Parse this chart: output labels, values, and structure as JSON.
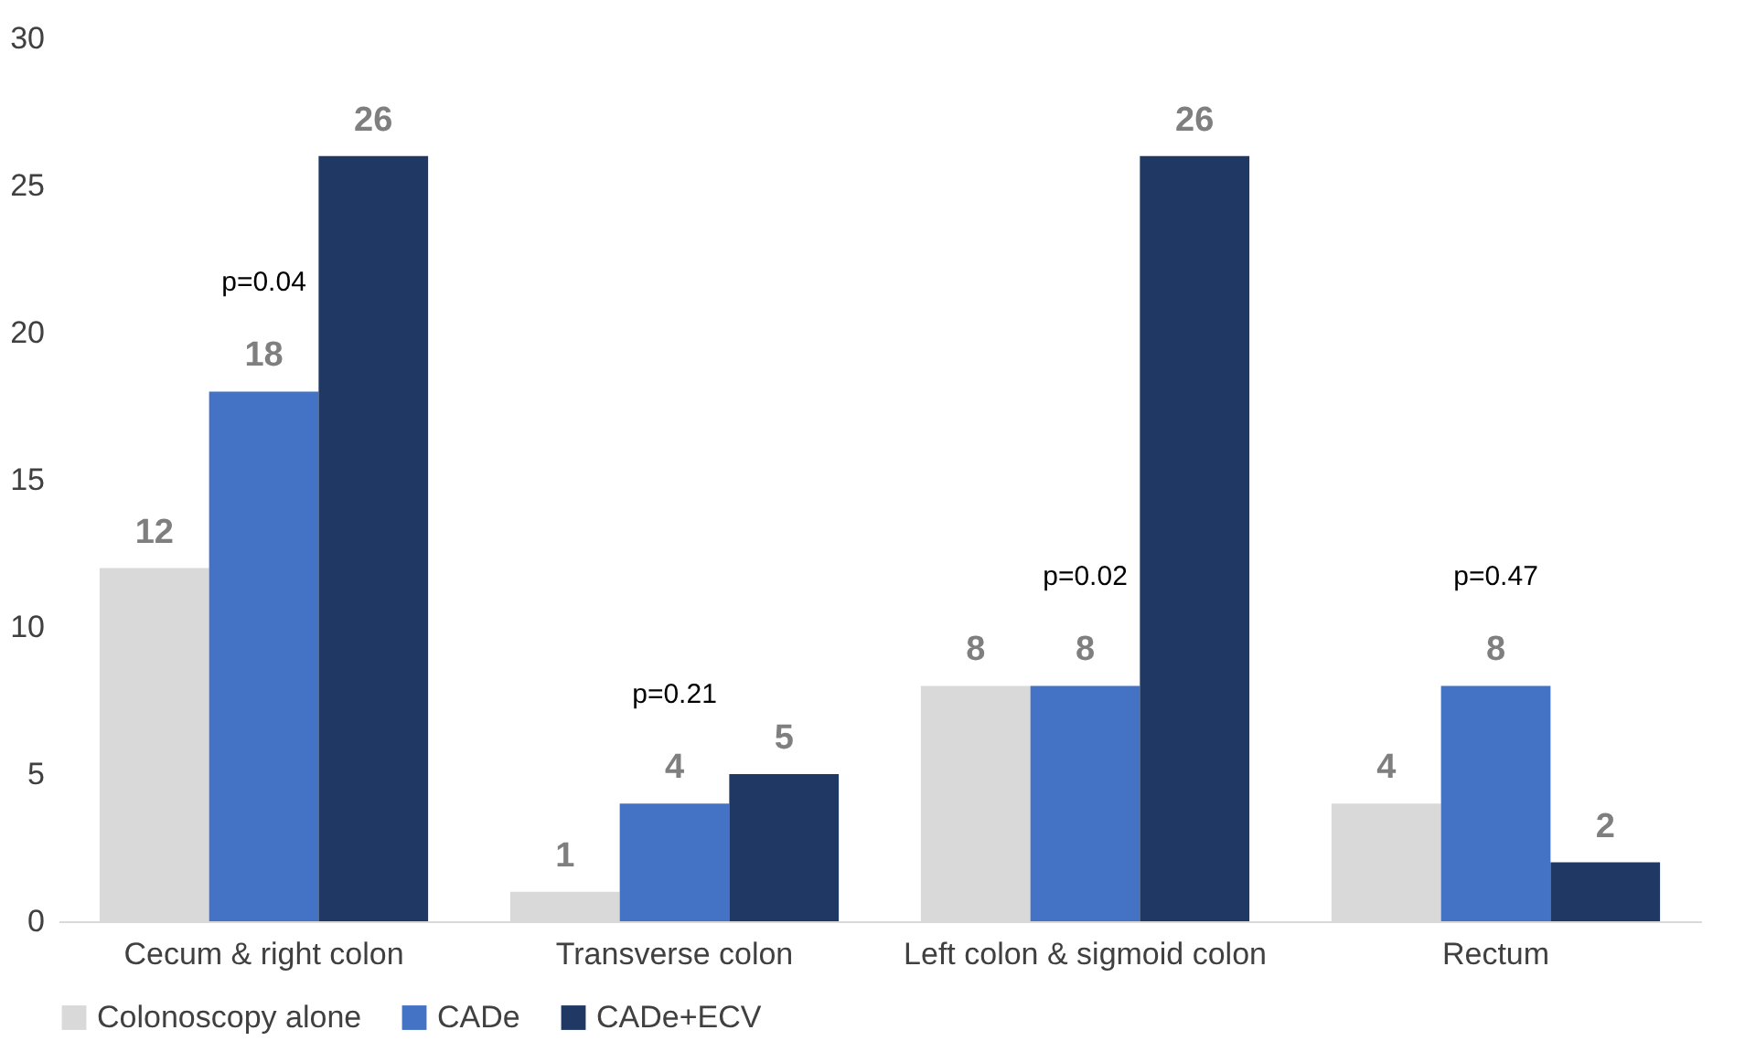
{
  "chart_data": {
    "type": "bar",
    "categories": [
      "Cecum & right colon",
      "Transverse colon",
      "Left colon & sigmoid colon",
      "Rectum"
    ],
    "series": [
      {
        "name": "Colonoscopy alone",
        "color": "#d9d9d9",
        "values": [
          12,
          1,
          8,
          4
        ]
      },
      {
        "name": "CADe",
        "color": "#4472c4",
        "values": [
          18,
          4,
          8,
          8
        ]
      },
      {
        "name": "CADe+ECV",
        "color": "#203864",
        "values": [
          26,
          5,
          26,
          2
        ]
      }
    ],
    "ylim": [
      0,
      30
    ],
    "yticks": [
      0,
      5,
      10,
      15,
      20,
      25,
      30
    ],
    "grid": false,
    "legend": "bottom",
    "data_labels": true,
    "annotations": [
      "p=0.04",
      "p=0.21",
      "p=0.02",
      "p=0.47"
    ]
  }
}
